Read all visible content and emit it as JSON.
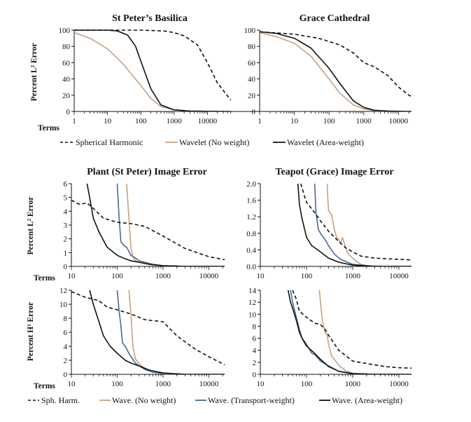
{
  "colors": {
    "sh": "#111111",
    "no_weight": "#c8a080",
    "transport": "#4a6a90",
    "area": "#111111",
    "axis": "#111111"
  },
  "legend_top": [
    "Spherical Harmonic",
    "Wavelet (No weight)",
    "Wavelet (Area-weight)"
  ],
  "legend_bottom": [
    "Sph. Harm.",
    "Wave. (No weight)",
    "Wave. (Transport-weight)",
    "Wave. (Area-weight)"
  ],
  "terms_label": "Terms",
  "ylabels": {
    "l2": "Percent L² Error",
    "h1": "Percent H¹ Error"
  },
  "chart_data": [
    {
      "id": "stpeter",
      "type": "line",
      "title": "St Peter’s Basilica",
      "xscale": "log",
      "xlim": [
        1,
        50000
      ],
      "ylim": [
        0,
        100
      ],
      "xticks": [
        1,
        10,
        100,
        1000,
        10000
      ],
      "xtick_labels": [
        "1",
        "10",
        "100",
        "1000",
        "10000"
      ],
      "yticks": [
        0,
        20,
        40,
        60,
        80,
        100
      ],
      "ytick_labels": [
        "0",
        "20",
        "40",
        "60",
        "80",
        "100"
      ],
      "series": [
        {
          "name": "Spherical Harmonic",
          "style": "sh",
          "x": [
            1,
            10,
            100,
            500,
            1000,
            2000,
            5000,
            10000,
            20000,
            50000
          ],
          "y": [
            100,
            100,
            100,
            99,
            97,
            93,
            82,
            60,
            35,
            14
          ]
        },
        {
          "name": "Wavelet (No weight)",
          "style": "no_weight",
          "x": [
            1,
            3,
            10,
            30,
            100,
            200,
            400,
            1000,
            3000,
            10000,
            50000
          ],
          "y": [
            97,
            90,
            77,
            58,
            32,
            16,
            6,
            2,
            0.5,
            0.2,
            0
          ]
        },
        {
          "name": "Wavelet (Area-weight)",
          "style": "area",
          "x": [
            1,
            10,
            20,
            40,
            70,
            100,
            200,
            400,
            1000,
            3000,
            10000,
            50000
          ],
          "y": [
            100,
            100,
            99,
            94,
            80,
            62,
            28,
            8,
            2,
            0.5,
            0.2,
            0
          ]
        }
      ]
    },
    {
      "id": "grace",
      "type": "line",
      "title": "Grace Cathedral",
      "xscale": "log",
      "xlim": [
        1,
        50000
      ],
      "ylim": [
        0,
        100
      ],
      "xticks": [
        1,
        10,
        100,
        1000,
        10000
      ],
      "xtick_labels": [
        "1",
        "10",
        "100",
        "1000",
        "10000"
      ],
      "yticks": [
        0,
        20,
        40,
        60,
        80,
        100
      ],
      "ytick_labels": [
        "0",
        "20",
        "40",
        "60",
        "80",
        "100"
      ],
      "series": [
        {
          "name": "Spherical Harmonic",
          "style": "sh",
          "x": [
            1,
            10,
            50,
            100,
            200,
            500,
            1000,
            2000,
            5000,
            10000,
            20000,
            50000
          ],
          "y": [
            98,
            95,
            90,
            86,
            82,
            72,
            60,
            55,
            44,
            30,
            20,
            12
          ]
        },
        {
          "name": "Wavelet (No weight)",
          "style": "no_weight",
          "x": [
            1,
            3,
            10,
            30,
            100,
            200,
            500,
            1000,
            2000,
            5000,
            20000,
            50000
          ],
          "y": [
            97,
            92,
            84,
            68,
            40,
            23,
            8,
            3,
            1,
            0.3,
            0,
            0
          ]
        },
        {
          "name": "Wavelet (Area-weight)",
          "style": "area",
          "x": [
            1,
            3,
            10,
            30,
            100,
            200,
            500,
            1000,
            2000,
            5000,
            20000,
            50000
          ],
          "y": [
            98,
            96,
            90,
            78,
            53,
            35,
            13,
            5,
            1.5,
            0.5,
            0,
            0
          ]
        }
      ]
    },
    {
      "id": "plant_l2",
      "type": "line",
      "title": "Plant (St Peter) Image Error",
      "xscale": "log",
      "xlim": [
        10,
        25000
      ],
      "ylim": [
        0,
        6
      ],
      "xticks": [
        10,
        100,
        1000,
        10000
      ],
      "xtick_labels": [
        "10",
        "100",
        "1000",
        "10000"
      ],
      "yticks": [
        0,
        1,
        2,
        3,
        4,
        5,
        6
      ],
      "ytick_labels": [
        "0",
        "1",
        "2",
        "3",
        "4",
        "5",
        "6"
      ],
      "series": [
        {
          "name": "Sph. Harm.",
          "style": "sh",
          "x": [
            10,
            15,
            22,
            30,
            50,
            100,
            200,
            400,
            1000,
            3000,
            10000,
            25000
          ],
          "y": [
            4.8,
            4.5,
            4.6,
            4.2,
            3.5,
            3.2,
            3.1,
            2.9,
            2.2,
            1.3,
            0.7,
            0.45
          ]
        },
        {
          "name": "Wave. (No weight)",
          "style": "no_weight",
          "x": [
            160,
            180,
            200,
            220,
            250,
            300,
            400,
            600,
            1000,
            3000,
            25000
          ],
          "y": [
            6,
            3.5,
            1.3,
            0.7,
            0.4,
            0.3,
            0.2,
            0.1,
            0.05,
            0,
            0
          ]
        },
        {
          "name": "Wave. (Transport-weight)",
          "style": "transport",
          "x": [
            100,
            110,
            120,
            140,
            160,
            200,
            250,
            300,
            400,
            600,
            1000,
            3000,
            25000
          ],
          "y": [
            6,
            3.5,
            1.8,
            1.5,
            1.4,
            0.8,
            0.6,
            0.4,
            0.3,
            0.15,
            0.05,
            0,
            0
          ]
        },
        {
          "name": "Wave. (Area-weight)",
          "style": "area",
          "x": [
            22,
            25,
            30,
            40,
            60,
            100,
            150,
            200,
            300,
            500,
            1000,
            3000,
            25000
          ],
          "y": [
            6,
            5,
            3.5,
            2.5,
            1.4,
            0.8,
            0.55,
            0.4,
            0.3,
            0.15,
            0.05,
            0,
            0
          ]
        }
      ]
    },
    {
      "id": "teapot_l2",
      "type": "line",
      "title": "Teapot (Grace) Image Error",
      "xscale": "log",
      "xlim": [
        10,
        25000
      ],
      "ylim": [
        0,
        2.0
      ],
      "xticks": [
        10,
        100,
        1000,
        10000
      ],
      "xtick_labels": [
        "10",
        "100",
        "1000",
        "10000"
      ],
      "yticks": [
        0,
        0.4,
        0.8,
        1.2,
        1.6,
        2.0
      ],
      "ytick_labels": [
        "0.0",
        "0.4",
        "0.8",
        "1.2",
        "1.6",
        "2.0"
      ],
      "series": [
        {
          "name": "Sph. Harm.",
          "style": "sh",
          "x": [
            75,
            80,
            90,
            100,
            150,
            200,
            300,
            500,
            700,
            1000,
            1500,
            3000,
            10000,
            25000
          ],
          "y": [
            2.0,
            1.9,
            1.7,
            1.55,
            1.3,
            1.1,
            0.85,
            0.6,
            0.45,
            0.35,
            0.25,
            0.2,
            0.17,
            0.15
          ]
        },
        {
          "name": "Wave. (No weight)",
          "style": "no_weight",
          "x": [
            280,
            290,
            300,
            350,
            400,
            450,
            500,
            550,
            600,
            700,
            800,
            1000,
            1200,
            1500,
            2000,
            5000,
            25000
          ],
          "y": [
            2.0,
            1.6,
            1.35,
            1.25,
            0.9,
            0.7,
            0.65,
            0.55,
            0.7,
            0.45,
            0.3,
            0.2,
            0.12,
            0.05,
            0.02,
            0,
            0
          ]
        },
        {
          "name": "Wave. (Transport-weight)",
          "style": "transport",
          "x": [
            150,
            160,
            180,
            200,
            250,
            300,
            400,
            500,
            600,
            1000,
            3000,
            25000
          ],
          "y": [
            2.0,
            1.3,
            0.9,
            0.8,
            0.65,
            0.5,
            0.3,
            0.2,
            0.15,
            0.05,
            0,
            0
          ]
        },
        {
          "name": "Wave. (Area-weight)",
          "style": "area",
          "x": [
            65,
            70,
            80,
            100,
            130,
            150,
            200,
            300,
            500,
            1000,
            3000,
            25000
          ],
          "y": [
            2.0,
            1.5,
            1.15,
            0.7,
            0.5,
            0.45,
            0.35,
            0.2,
            0.1,
            0.03,
            0,
            0
          ]
        }
      ]
    },
    {
      "id": "plant_h1",
      "type": "line",
      "title": "",
      "xscale": "log",
      "xlim": [
        10,
        25000
      ],
      "ylim": [
        0,
        12
      ],
      "xticks": [
        10,
        100,
        1000,
        10000
      ],
      "xtick_labels": [
        "10",
        "100",
        "1000",
        "10000"
      ],
      "yticks": [
        0,
        2,
        4,
        6,
        8,
        10,
        12
      ],
      "ytick_labels": [
        "0",
        "2",
        "4",
        "6",
        "8",
        "10",
        "12"
      ],
      "series": [
        {
          "name": "Sph. Harm.",
          "style": "sh",
          "x": [
            10,
            20,
            40,
            60,
            100,
            200,
            400,
            1000,
            2000,
            5000,
            10000,
            25000
          ],
          "y": [
            11.8,
            11,
            10.5,
            9.6,
            9.2,
            8.6,
            7.8,
            7.5,
            5.5,
            3.6,
            2.5,
            1.2
          ]
        },
        {
          "name": "Wave. (No weight)",
          "style": "no_weight",
          "x": [
            180,
            200,
            220,
            250,
            300,
            400,
            600,
            1000,
            3000,
            25000
          ],
          "y": [
            12,
            8.5,
            4,
            2.2,
            1.5,
            0.8,
            0.3,
            0.1,
            0,
            0
          ]
        },
        {
          "name": "Wave. (Transport-weight)",
          "style": "transport",
          "x": [
            100,
            110,
            120,
            130,
            150,
            180,
            200,
            250,
            300,
            400,
            600,
            1000,
            3000,
            25000
          ],
          "y": [
            12,
            9,
            7,
            4.5,
            4.0,
            3.0,
            2.5,
            1.6,
            1.2,
            0.7,
            0.3,
            0.1,
            0,
            0
          ]
        },
        {
          "name": "Wave. (Area-weight)",
          "style": "area",
          "x": [
            25,
            30,
            40,
            50,
            70,
            100,
            150,
            200,
            300,
            500,
            1000,
            3000,
            25000
          ],
          "y": [
            12,
            10,
            7.5,
            5.5,
            4.0,
            3.0,
            2.0,
            1.6,
            1.2,
            0.6,
            0.2,
            0,
            0
          ]
        }
      ]
    },
    {
      "id": "teapot_h1",
      "type": "line",
      "title": "",
      "xscale": "log",
      "xlim": [
        10,
        25000
      ],
      "ylim": [
        0,
        14
      ],
      "xticks": [
        10,
        100,
        1000,
        10000
      ],
      "xtick_labels": [
        "10",
        "100",
        "1000",
        "10000"
      ],
      "yticks": [
        0,
        2,
        4,
        6,
        8,
        10,
        12,
        14
      ],
      "ytick_labels": [
        "0",
        "2",
        "4",
        "6",
        "8",
        "10",
        "12",
        "14"
      ],
      "series": [
        {
          "name": "Sph. Harm.",
          "style": "sh",
          "x": [
            50,
            60,
            70,
            100,
            150,
            200,
            250,
            300,
            500,
            1000,
            2000,
            5000,
            10000,
            25000
          ],
          "y": [
            14,
            12.5,
            10.5,
            9.5,
            8.5,
            8.3,
            7.5,
            6.5,
            4.0,
            2.2,
            1.8,
            1.3,
            1.1,
            1.0
          ]
        },
        {
          "name": "Wave. (No weight)",
          "style": "no_weight",
          "x": [
            190,
            200,
            220,
            250,
            280,
            300,
            350,
            400,
            500,
            700,
            1000,
            2000,
            25000
          ],
          "y": [
            14,
            12,
            9,
            7,
            6.5,
            5,
            3,
            2.5,
            1.5,
            0.6,
            0.2,
            0.05,
            0
          ]
        },
        {
          "name": "Wave. (Transport-weight)",
          "style": "transport",
          "x": [
            45,
            50,
            60,
            70,
            80,
            90,
            100,
            130,
            150,
            200,
            300,
            500,
            1000,
            3000,
            25000
          ],
          "y": [
            14,
            12,
            9.5,
            7.5,
            6.0,
            5.5,
            5.0,
            3.5,
            3.3,
            2.2,
            1.4,
            0.5,
            0.1,
            0,
            0
          ]
        },
        {
          "name": "Wave. (Area-weight)",
          "style": "area",
          "x": [
            40,
            45,
            50,
            60,
            70,
            80,
            100,
            150,
            200,
            300,
            500,
            1000,
            3000,
            25000
          ],
          "y": [
            14,
            12,
            11,
            9,
            7,
            6,
            4.7,
            3.5,
            2.5,
            1.3,
            0.5,
            0.1,
            0,
            0
          ]
        }
      ]
    }
  ]
}
